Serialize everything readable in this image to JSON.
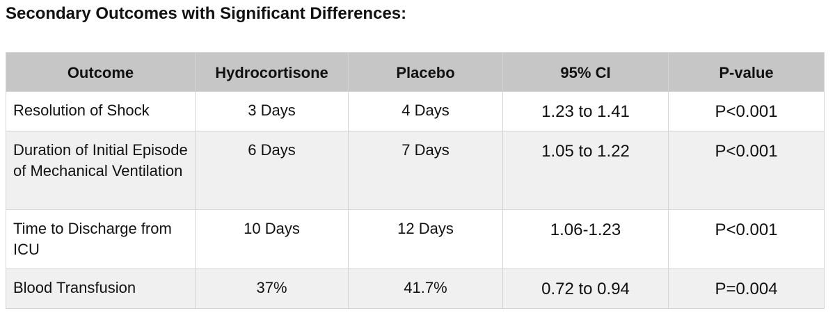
{
  "header": {
    "title": "Secondary Outcomes with Significant Differences:"
  },
  "table": {
    "columns": [
      "Outcome",
      "Hydrocortisone",
      "Placebo",
      "95% CI",
      "P-value"
    ],
    "rows": [
      [
        "Resolution of Shock",
        "3 Days",
        "4 Days",
        "1.23 to 1.41",
        "P<0.001"
      ],
      [
        "Duration of Initial Episode of Mechanical Ventilation",
        "6 Days",
        "7 Days",
        "1.05 to 1.22",
        "P<0.001"
      ],
      [
        "Time to Discharge from ICU",
        "10 Days",
        "12 Days",
        "1.06-1.23",
        "P<0.001"
      ],
      [
        "Blood Transfusion",
        "37%",
        "41.7%",
        "0.72 to 0.94",
        "P=0.004"
      ]
    ]
  }
}
